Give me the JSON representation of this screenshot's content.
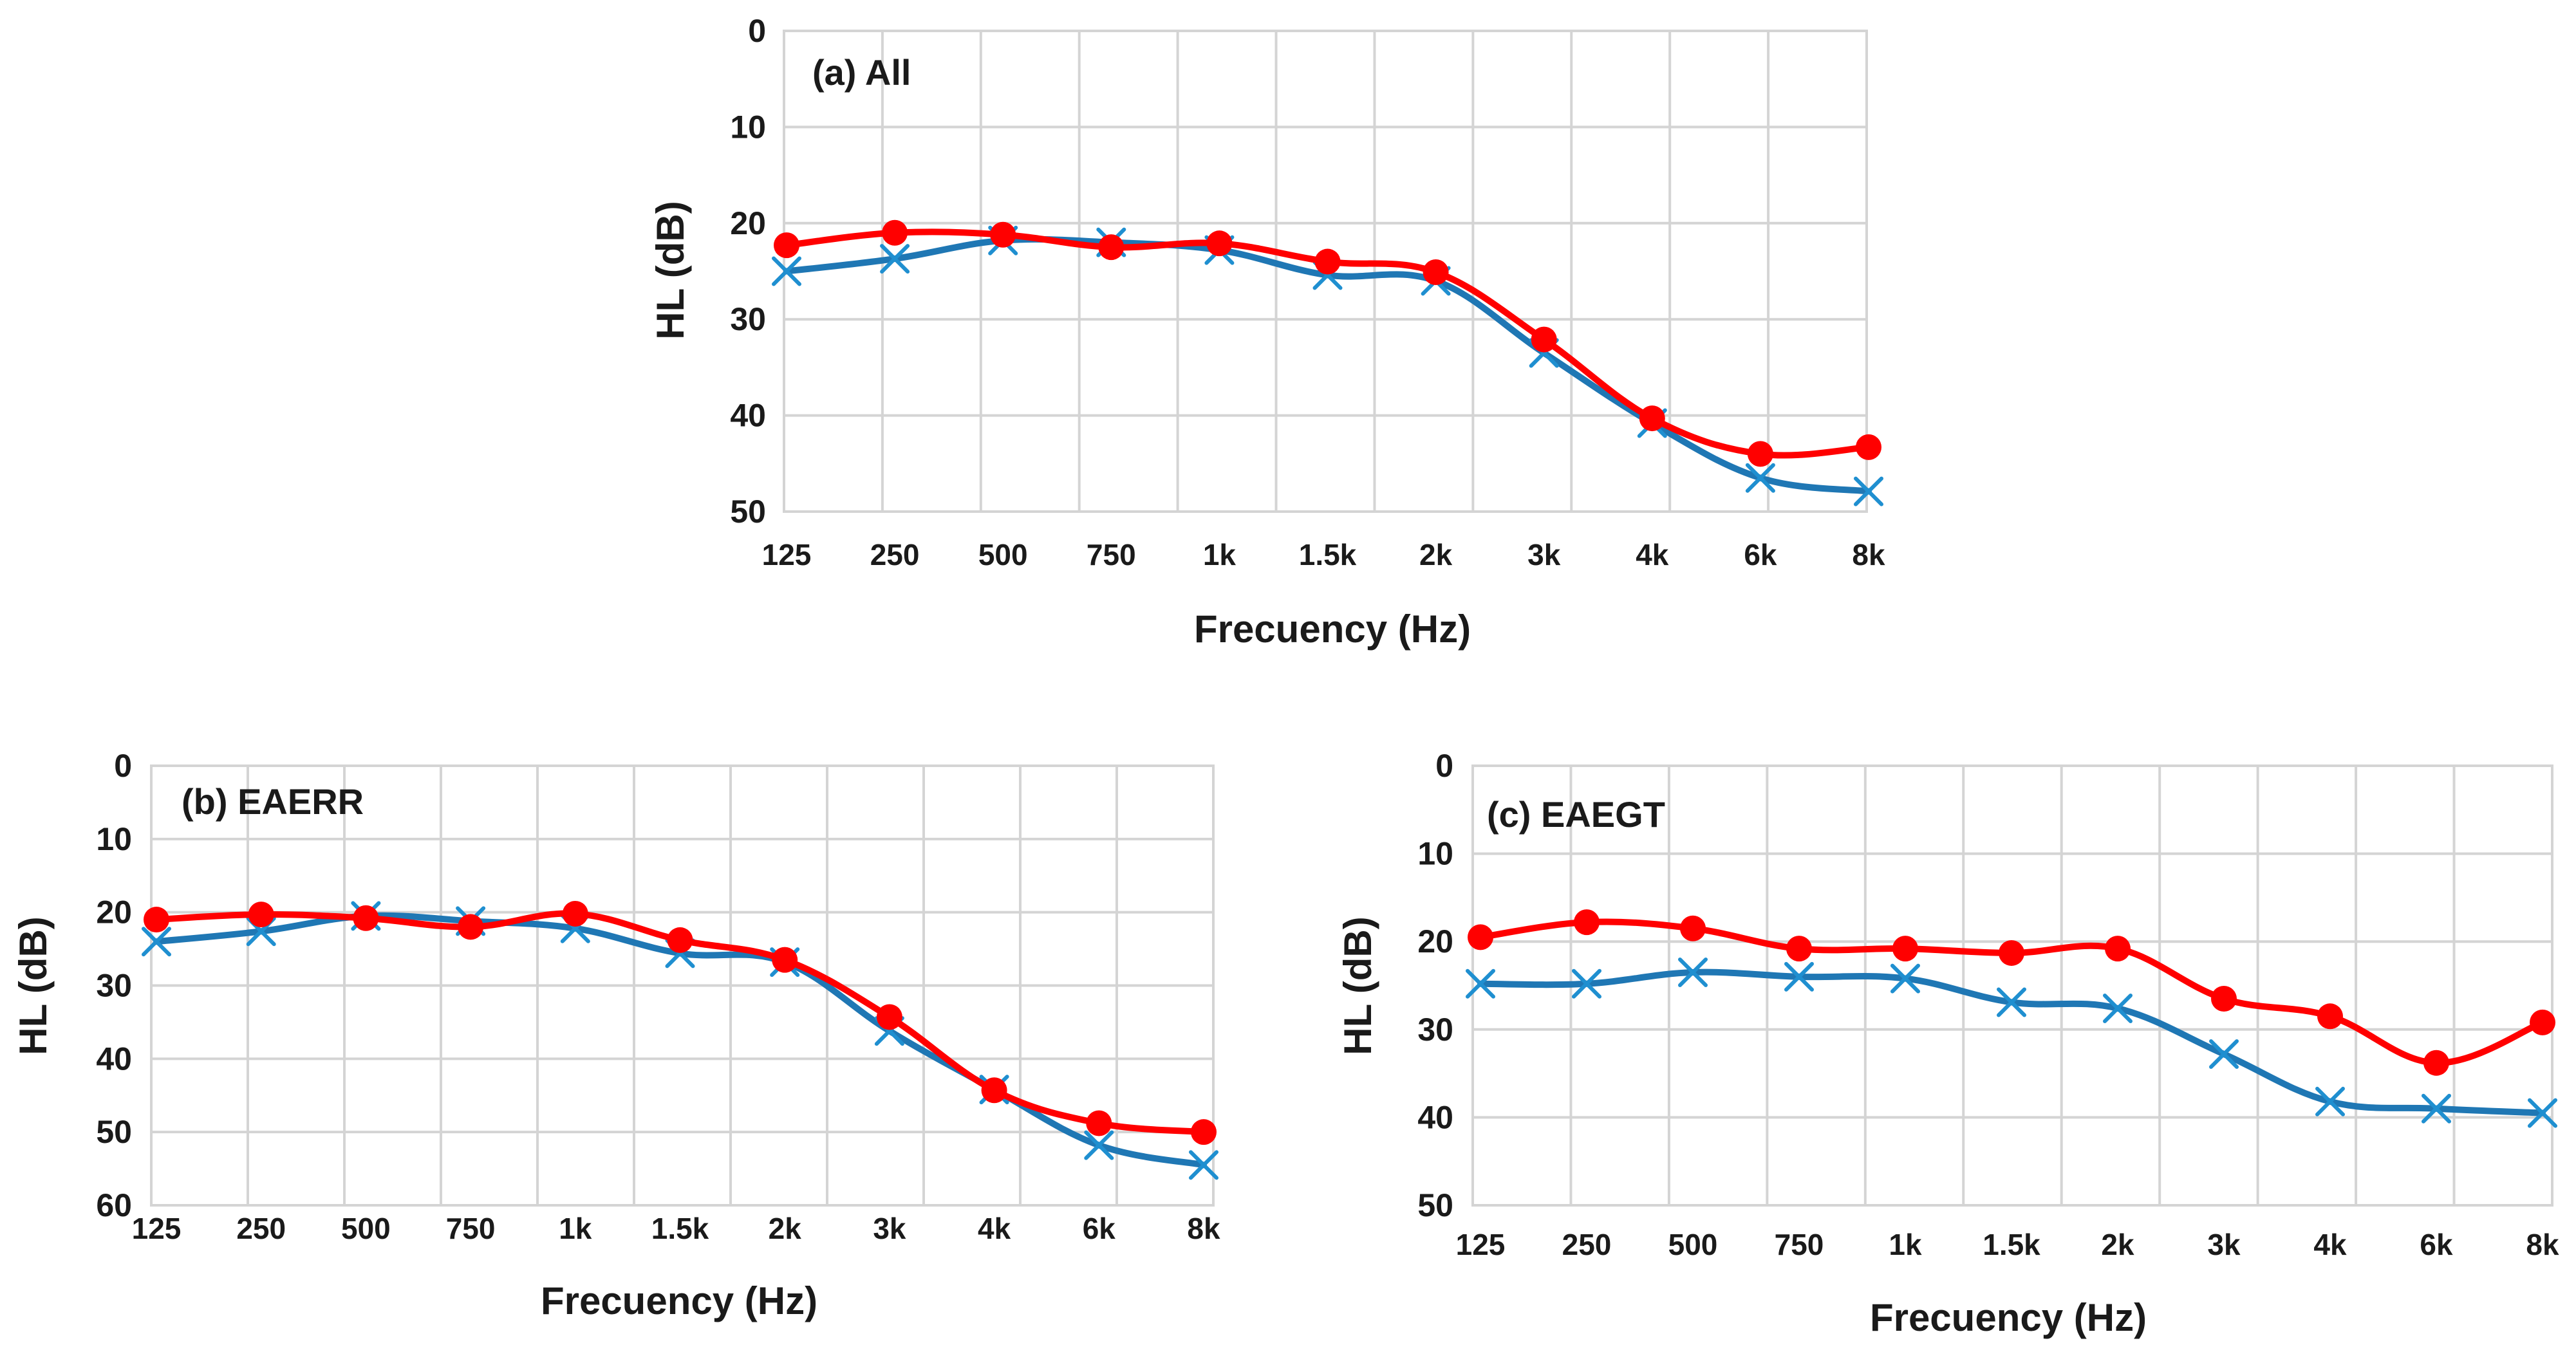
{
  "colors": {
    "series_red": "#ff0000",
    "series_blue": "#1f77b4",
    "marker_blue": "#1f8fd0",
    "grid": "#d4d4d4"
  },
  "chart_data": [
    {
      "type": "line",
      "panel_label": "(a) All",
      "xlabel": "Frecuency (Hz)",
      "ylabel": "HL (dB)",
      "categories": [
        "125",
        "250",
        "500",
        "750",
        "1k",
        "1.5k",
        "2k",
        "3k",
        "4k",
        "6k",
        "8k"
      ],
      "x_positions": [
        0,
        1,
        2,
        3,
        4,
        5,
        6,
        7,
        8,
        9,
        10
      ],
      "ylim": [
        0,
        50
      ],
      "y_inverted": true,
      "yticks": [
        0,
        10,
        20,
        30,
        40,
        50
      ],
      "series": [
        {
          "name": "red",
          "marker": "circle",
          "values": [
            22.3,
            21,
            21.2,
            22.5,
            22.1,
            24,
            25.1,
            32.1,
            40.3,
            44,
            43.3
          ]
        },
        {
          "name": "blue",
          "marker": "x",
          "values": [
            25,
            23.7,
            21.8,
            22,
            22.8,
            25.4,
            26,
            33.5,
            40.8,
            46.5,
            47.9
          ]
        }
      ]
    },
    {
      "type": "line",
      "panel_label": "(b) EAERR",
      "xlabel": "Frecuency (Hz)",
      "ylabel": "HL (dB)",
      "categories": [
        "125",
        "250",
        "500",
        "750",
        "1k",
        "1.5k",
        "2k",
        "3k",
        "4k",
        "6k",
        "8k"
      ],
      "x_positions": [
        0,
        1,
        2,
        3,
        4,
        5,
        6,
        7,
        8,
        9,
        10
      ],
      "ylim": [
        0,
        60
      ],
      "y_inverted": true,
      "yticks": [
        0,
        10,
        20,
        30,
        40,
        50,
        60
      ],
      "series": [
        {
          "name": "red",
          "marker": "circle",
          "values": [
            21,
            20.3,
            20.8,
            22,
            20.2,
            23.8,
            26.5,
            34.3,
            44.3,
            48.8,
            50
          ]
        },
        {
          "name": "blue",
          "marker": "x",
          "values": [
            24,
            22.6,
            20.5,
            21.2,
            22.2,
            25.6,
            26.8,
            36.2,
            44.2,
            51.8,
            54.5
          ]
        }
      ]
    },
    {
      "type": "line",
      "panel_label": "(c) EAEGT",
      "xlabel": "Frecuency (Hz)",
      "ylabel": "HL (dB)",
      "categories": [
        "125",
        "250",
        "500",
        "750",
        "1k",
        "1.5k",
        "2k",
        "3k",
        "4k",
        "6k",
        "8k"
      ],
      "x_positions": [
        0,
        1,
        2,
        3,
        4,
        5,
        6,
        7,
        8,
        9,
        10
      ],
      "ylim": [
        0,
        50
      ],
      "y_inverted": true,
      "yticks": [
        0,
        10,
        20,
        30,
        40,
        50
      ],
      "series": [
        {
          "name": "red",
          "marker": "circle",
          "values": [
            19.5,
            17.8,
            18.5,
            20.8,
            20.8,
            21.3,
            20.8,
            26.5,
            28.5,
            33.8,
            29.2
          ]
        },
        {
          "name": "blue",
          "marker": "x",
          "values": [
            24.8,
            24.8,
            23.5,
            24,
            24.2,
            26.9,
            27.6,
            32.8,
            38.2,
            39,
            39.5
          ]
        }
      ]
    }
  ]
}
